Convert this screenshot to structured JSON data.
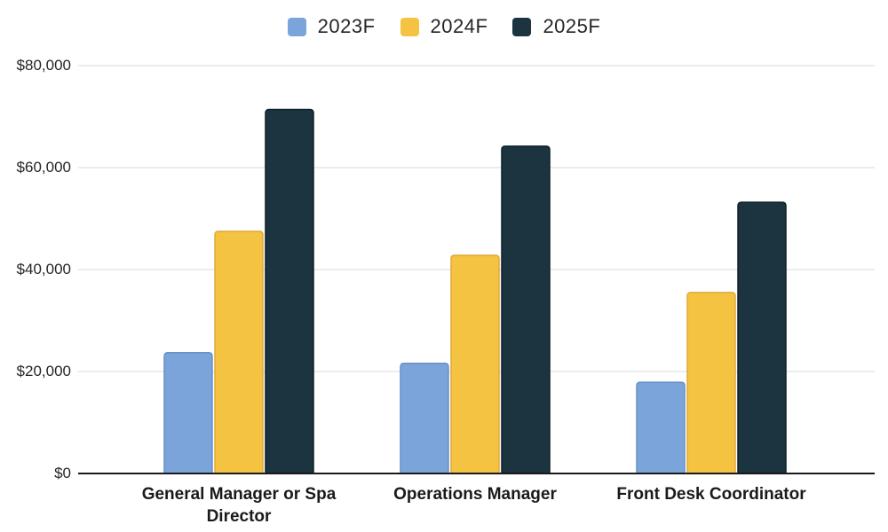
{
  "chart_data": {
    "type": "bar",
    "title": "",
    "xlabel": "",
    "ylabel": "",
    "categories": [
      "General Manager or Spa Director",
      "Operations Manager",
      "Front Desk Coordinator"
    ],
    "series": [
      {
        "name": "2023F",
        "color": "#7AA4DA",
        "border": "#6690c7",
        "values": [
          23700,
          21600,
          17900
        ]
      },
      {
        "name": "2024F",
        "color": "#F5C342",
        "border": "#e0a93a",
        "values": [
          47500,
          42800,
          35500
        ]
      },
      {
        "name": "2025F",
        "color": "#1B3440",
        "border": "#0e2029",
        "values": [
          71400,
          64200,
          53200
        ]
      }
    ],
    "ylim": [
      0,
      80000
    ],
    "ytick_step": 20000,
    "ytick_labels": [
      "$0",
      "$20,000",
      "$40,000",
      "$60,000",
      "$80,000"
    ],
    "grid": true,
    "gridline_color": "#d8d8d8",
    "axis_line_color": "#1a1a1a",
    "legend_position": "top"
  }
}
